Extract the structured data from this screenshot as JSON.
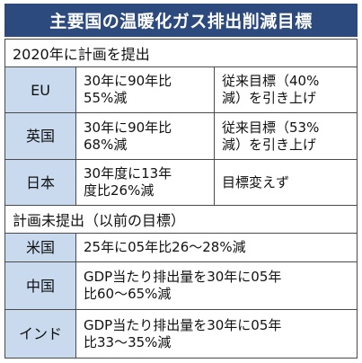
{
  "title": "主要国の温暖化ガス排出削減目標",
  "section1": "2020年に計画を提出",
  "section2": "計画未提出（以前の目標）",
  "submitted": [
    {
      "country": "EU",
      "target": "30年に90年比\n55%減",
      "previous": "従来目標（40%\n減）を引き上げ"
    },
    {
      "country": "英国",
      "target": "30年に90年比\n68%減",
      "previous": "従来目標（53%\n減）を引き上げ"
    },
    {
      "country": "日本",
      "target": "30年度に13年\n度比26%減",
      "previous": "目標変えず"
    }
  ],
  "not_submitted": [
    {
      "country": "米国",
      "target": "25年に05年比26〜28%減"
    },
    {
      "country": "中国",
      "target": "GDP当たり排出量を30年に05年\n比60〜65%減"
    },
    {
      "country": "インド",
      "target": "GDP当たり排出量を30年に05年\n比33〜35%減"
    }
  ]
}
